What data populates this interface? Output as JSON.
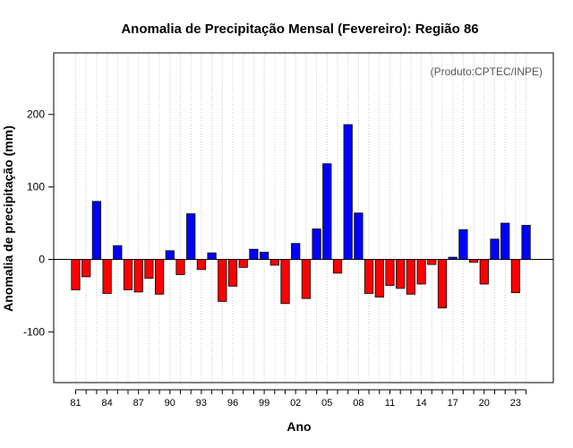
{
  "chart_data": {
    "type": "bar",
    "title": "Anomalia de Precipitação Mensal (Fevereiro): Região 86",
    "annotation": "(Produto:CPTEC/INPE)",
    "xlabel": "Ano",
    "ylabel": "Anomalia de precipitação (mm)",
    "ylim": [
      -170,
      285
    ],
    "yticks": [
      -100,
      0,
      100,
      200
    ],
    "grid": "vertical-dotted",
    "positive_color": "#0000ff",
    "negative_color": "#ff0000",
    "x_tick_labels": [
      "81",
      "84",
      "87",
      "90",
      "93",
      "96",
      "99",
      "02",
      "05",
      "08",
      "11",
      "14",
      "17",
      "20",
      "23"
    ],
    "categories": [
      "1981",
      "1982",
      "1983",
      "1984",
      "1985",
      "1986",
      "1987",
      "1988",
      "1989",
      "1990",
      "1991",
      "1992",
      "1993",
      "1994",
      "1995",
      "1996",
      "1997",
      "1998",
      "1999",
      "2000",
      "2001",
      "2002",
      "2003",
      "2004",
      "2005",
      "2006",
      "2007",
      "2008",
      "2009",
      "2010",
      "2011",
      "2012",
      "2013",
      "2014",
      "2015",
      "2016",
      "2017",
      "2018",
      "2019",
      "2020",
      "2021",
      "2022",
      "2023",
      "2024"
    ],
    "values": [
      -42,
      -24,
      80,
      -47,
      19,
      -42,
      -45,
      -26,
      -48,
      12,
      -21,
      63,
      -14,
      9,
      -58,
      -37,
      -11,
      14,
      10,
      -8,
      -61,
      22,
      -54,
      42,
      132,
      -19,
      186,
      64,
      -47,
      -52,
      -36,
      -40,
      -48,
      -34,
      -7,
      -67,
      3,
      41,
      -4,
      -34,
      28,
      50,
      -46,
      47
    ]
  }
}
